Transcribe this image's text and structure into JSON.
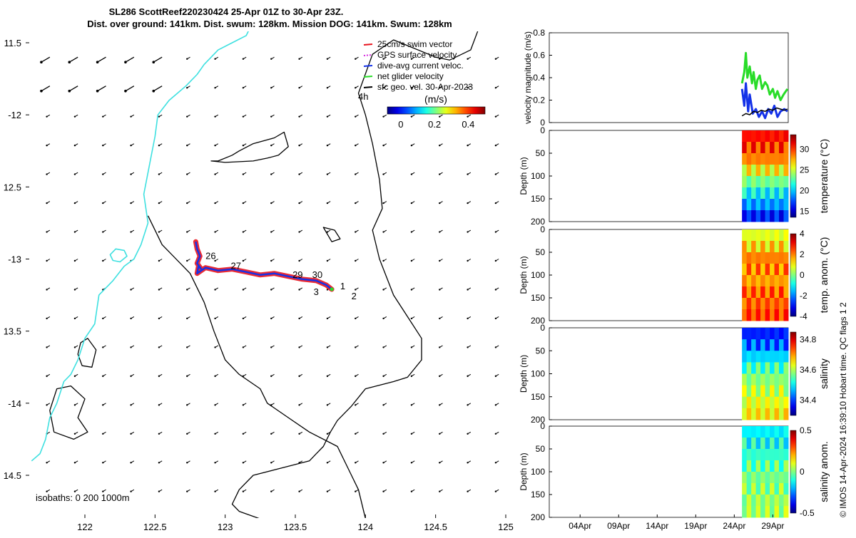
{
  "header": {
    "title_line1": "SL286 ScottReef220230424 25-Apr 01Z to 30-Apr 23Z.",
    "title_line2": "Dist. over ground: 141km. Dist. swum: 128km. Mission DOG: 141km. Swum: 128km"
  },
  "credit": "© IMOS 14-Apr-2024 16:39:10 Hobart time. QC flags 1  2",
  "chart_data": [
    {
      "type": "scatter",
      "title": "Glider track map",
      "xlim": [
        121.6,
        125.05
      ],
      "ylim": [
        -14.8,
        -11.4
      ],
      "x_ticks": [
        122,
        122.5,
        123,
        123.5,
        124,
        124.5,
        125
      ],
      "x_tick_labels": [
        "122",
        "122.5",
        "123",
        "123.5",
        "124",
        "124.5",
        "125"
      ],
      "y_ticks": [
        -11.5,
        -12,
        -12.5,
        -13,
        -13.5,
        -14,
        -14.5
      ],
      "y_tick_labels": [
        "11.5",
        "-12",
        "12.5",
        "-13",
        "13.5",
        "-14",
        "14.5"
      ],
      "legend": [
        {
          "label": "25cm/s swim vector",
          "color": "#e8141e"
        },
        {
          "label": "GPS surface velocity",
          "color": "#d62adf"
        },
        {
          "label": "dive-avg current veloc.",
          "color": "#1432e8"
        },
        {
          "label": "net glider velocity",
          "color": "#28dc28"
        },
        {
          "label": "sfc geo. vel. 30-Apr-2023",
          "color": "#000000"
        }
      ],
      "legend_extra": "4h",
      "colorbar": {
        "label": "(m/s)",
        "ticks": [
          "0",
          "0.2",
          "0.4"
        ],
        "range": [
          -0.08,
          0.5
        ]
      },
      "isobaths_label": "isobaths: 0   200  1000m",
      "day_labels": [
        {
          "text": "26",
          "lon": 122.86,
          "lat": -13.0
        },
        {
          "text": "27",
          "lon": 123.04,
          "lat": -13.07
        },
        {
          "text": "29",
          "lon": 123.48,
          "lat": -13.13
        },
        {
          "text": "30",
          "lon": 123.62,
          "lat": -13.13
        },
        {
          "text": "1",
          "lon": 123.82,
          "lat": -13.21
        },
        {
          "text": "2",
          "lon": 123.9,
          "lat": -13.28
        },
        {
          "text": "3",
          "lon": 123.63,
          "lat": -13.25
        }
      ],
      "track": {
        "lon": [
          122.79,
          122.8,
          122.82,
          122.8,
          122.83,
          122.81,
          122.8,
          122.86,
          122.95,
          123.05,
          123.15,
          123.25,
          123.35,
          123.45,
          123.55,
          123.65,
          123.72,
          123.76
        ],
        "lat": [
          -12.88,
          -12.93,
          -12.98,
          -13.03,
          -13.07,
          -13.05,
          -13.1,
          -13.06,
          -13.08,
          -13.07,
          -13.09,
          -13.11,
          -13.1,
          -13.12,
          -13.14,
          -13.15,
          -13.18,
          -13.21
        ]
      },
      "coastline_cyan": {
        "lon": [
          123.2,
          123.15,
          123.05,
          122.95,
          122.85,
          122.8,
          122.72,
          122.6,
          122.52,
          122.5,
          122.47,
          122.42,
          122.45,
          122.4,
          122.35,
          122.28,
          122.2,
          122.1,
          122.07,
          122.0,
          121.95,
          121.9,
          121.85,
          121.8,
          121.75,
          121.72,
          121.68,
          121.62
        ],
        "lat": [
          -11.35,
          -11.45,
          -11.5,
          -11.55,
          -11.65,
          -11.72,
          -11.8,
          -11.9,
          -12.0,
          -12.15,
          -12.3,
          -12.55,
          -12.75,
          -12.9,
          -13.0,
          -13.05,
          -13.15,
          -13.25,
          -13.45,
          -13.55,
          -13.7,
          -13.8,
          -13.85,
          -14.0,
          -14.1,
          -14.25,
          -14.35,
          -14.4
        ]
      },
      "coastline_cyan_island": {
        "lon": [
          122.22,
          122.28,
          122.3,
          122.25,
          122.2,
          122.18,
          122.22
        ],
        "lat": [
          -12.93,
          -12.94,
          -12.98,
          -13.02,
          -13.01,
          -12.97,
          -12.93
        ]
      },
      "isobath_200": {
        "lon": [
          124.82,
          124.8,
          124.75,
          124.6,
          124.5,
          124.3,
          124.2,
          124.05,
          123.95,
          124.0,
          124.05,
          124.1,
          124.12,
          124.05,
          124.1,
          124.2,
          124.3,
          124.4,
          124.4,
          124.3,
          124.2,
          124.0,
          123.9,
          123.8,
          123.75,
          123.7,
          123.65,
          123.6,
          123.4,
          123.2,
          123.1,
          123.05,
          123.1,
          123.3,
          123.4,
          123.5,
          123.6,
          123.75,
          123.85,
          123.92,
          124.0,
          123.95,
          123.9,
          123.8,
          123.6,
          123.45,
          123.3,
          123.25,
          123.1,
          123.0,
          122.92,
          122.85,
          122.75,
          122.55,
          122.45
        ],
        "lat": [
          -11.35,
          -11.42,
          -11.55,
          -11.62,
          -11.6,
          -11.52,
          -11.48,
          -11.58,
          -11.85,
          -12.0,
          -12.2,
          -12.45,
          -12.65,
          -12.8,
          -13.0,
          -13.25,
          -13.4,
          -13.55,
          -13.7,
          -13.82,
          -13.85,
          -13.9,
          -14.02,
          -14.12,
          -14.2,
          -14.3,
          -14.35,
          -14.4,
          -14.45,
          -14.5,
          -14.6,
          -14.7,
          -14.75,
          -14.82,
          -14.9,
          -14.95,
          -15.0,
          -15.05,
          -15.02,
          -14.9,
          -14.8,
          -14.6,
          -14.5,
          -14.3,
          -14.2,
          -14.1,
          -14.0,
          -13.9,
          -13.8,
          -13.7,
          -13.5,
          -13.3,
          -13.1,
          -12.9,
          -12.7
        ]
      },
      "isobath_shelf_north": {
        "lon": [
          122.95,
          123.05,
          123.1,
          123.2,
          123.35,
          123.42,
          123.45,
          123.38,
          123.3,
          123.2,
          123.0,
          122.9
        ],
        "lat": [
          -12.32,
          -12.28,
          -12.25,
          -12.2,
          -12.16,
          -12.12,
          -12.22,
          -12.28,
          -12.3,
          -12.32,
          -12.33,
          -12.32
        ]
      },
      "isobath_small_1": {
        "lon": [
          121.97,
          122.02,
          122.08,
          122.05,
          121.98,
          121.95,
          121.97
        ],
        "lat": [
          -13.58,
          -13.55,
          -13.63,
          -13.75,
          -13.74,
          -13.66,
          -13.58
        ]
      },
      "isobath_small_2": {
        "lon": [
          121.8,
          121.9,
          122.0,
          121.95,
          122.02,
          121.92,
          121.78,
          121.75,
          121.8
        ],
        "lat": [
          -13.9,
          -13.88,
          -13.97,
          -14.1,
          -14.2,
          -14.25,
          -14.2,
          -14.05,
          -13.9
        ]
      },
      "isobath_small_3": {
        "lon": [
          123.7,
          123.78,
          123.82,
          123.76,
          123.7
        ],
        "lat": [
          -12.78,
          -12.8,
          -12.86,
          -12.88,
          -12.78
        ]
      },
      "vector_field": {
        "lon": [
          121.75,
          121.95,
          122.15,
          122.35,
          122.55,
          122.75,
          122.95,
          123.15,
          123.35,
          123.55,
          123.75,
          123.95,
          124.15,
          124.35,
          124.55,
          124.75,
          124.95
        ],
        "lat": [
          -11.6,
          -11.8,
          -12.0,
          -12.2,
          -12.4,
          -12.6,
          -12.8,
          -13.0,
          -13.2,
          -13.4,
          -13.6,
          -13.8,
          -14.0,
          -14.2,
          -14.4,
          -14.6
        ],
        "note": "arrow field; north-west region shows strong south-westward flow (~0.3 m/s), elsewhere weak south-westward flow"
      }
    },
    {
      "type": "line",
      "ylabel": "velocity magnitude (m/s)",
      "ylim": [
        0,
        0.8
      ],
      "yticks": [
        "0",
        "0.2",
        "0.4",
        "0.6",
        "0.8"
      ],
      "series": [
        {
          "name": "net glider velocity",
          "color": "#28dc28",
          "x_days": [
            25.0,
            25.3,
            25.5,
            25.7,
            26.0,
            26.3,
            26.5,
            26.8,
            27.0,
            27.3,
            27.6,
            28.0,
            28.3,
            28.6,
            29.0,
            29.3,
            29.6,
            30.0,
            30.4,
            30.9
          ],
          "values": [
            0.35,
            0.45,
            0.62,
            0.4,
            0.5,
            0.35,
            0.45,
            0.3,
            0.38,
            0.42,
            0.3,
            0.36,
            0.33,
            0.25,
            0.3,
            0.22,
            0.28,
            0.2,
            0.25,
            0.3
          ]
        },
        {
          "name": "dive-avg current veloc.",
          "color": "#1432e8",
          "x_days": [
            25.0,
            25.3,
            25.5,
            25.8,
            26.0,
            26.4,
            26.8,
            27.2,
            27.6,
            28.0,
            28.4,
            28.8,
            29.2,
            29.6,
            30.0,
            30.5,
            30.9
          ],
          "values": [
            0.3,
            0.15,
            0.35,
            0.1,
            0.25,
            0.08,
            0.12,
            0.05,
            0.1,
            0.04,
            0.12,
            0.08,
            0.15,
            0.05,
            0.1,
            0.12,
            0.1
          ]
        },
        {
          "name": "sfc geo. vel.",
          "color": "#000000",
          "x_days": [
            25.0,
            25.5,
            26.0,
            26.5,
            27.0,
            27.5,
            28.0,
            28.5,
            29.0,
            29.5,
            30.0,
            30.5,
            30.9
          ],
          "values": [
            0.06,
            0.08,
            0.07,
            0.1,
            0.09,
            0.11,
            0.1,
            0.12,
            0.11,
            0.13,
            0.12,
            0.11,
            0.12
          ]
        }
      ]
    },
    {
      "type": "heatmap",
      "ylabel": "Depth (m)",
      "colorbar_label": "temperature (°C)",
      "ylim": [
        0,
        200
      ],
      "yticks": [
        "0",
        "50",
        "100",
        "150",
        "200"
      ],
      "colorbar_ticks": [
        "15",
        "20",
        "25",
        "30"
      ],
      "colorbar_range": [
        13.5,
        33.5
      ],
      "profile_depths_m": [
        0,
        25,
        50,
        75,
        100,
        125,
        150,
        175,
        200
      ],
      "values": [
        31.0,
        30.5,
        29.5,
        27.5,
        24.5,
        22.0,
        20.0,
        18.0,
        15.0
      ]
    },
    {
      "type": "heatmap",
      "ylabel": "Depth (m)",
      "colorbar_label": "temp. anom. (°C)",
      "ylim": [
        0,
        200
      ],
      "yticks": [
        "0",
        "50",
        "100",
        "150",
        "200"
      ],
      "colorbar_ticks": [
        "-4",
        "-2",
        "0",
        "2",
        "4"
      ],
      "colorbar_range": [
        -4,
        4
      ],
      "profile_depths_m": [
        0,
        25,
        50,
        75,
        100,
        125,
        150,
        175,
        200
      ],
      "values": [
        0.5,
        1.0,
        1.5,
        2.5,
        1.5,
        2.0,
        2.5,
        2.0,
        3.0
      ]
    },
    {
      "type": "heatmap",
      "ylabel": "Depth (m)",
      "colorbar_label": "salinity",
      "ylim": [
        0,
        200
      ],
      "yticks": [
        "0",
        "50",
        "100",
        "150",
        "200"
      ],
      "colorbar_ticks": [
        "34.4",
        "34.6",
        "34.8"
      ],
      "colorbar_range": [
        34.3,
        34.85
      ],
      "profile_depths_m": [
        0,
        25,
        50,
        75,
        100,
        125,
        150,
        175,
        200
      ],
      "values": [
        34.37,
        34.4,
        34.45,
        34.52,
        34.56,
        34.6,
        34.62,
        34.64,
        34.66
      ]
    },
    {
      "type": "heatmap",
      "ylabel": "Depth (m)",
      "colorbar_label": "salinity anom.",
      "ylim": [
        0,
        200
      ],
      "yticks": [
        "0",
        "50",
        "100",
        "150",
        "200"
      ],
      "colorbar_ticks": [
        "-0.5",
        "0",
        "0.5"
      ],
      "colorbar_range": [
        -0.5,
        0.5
      ],
      "profile_depths_m": [
        0,
        25,
        50,
        75,
        100,
        125,
        150,
        175,
        200
      ],
      "values": [
        -0.15,
        -0.12,
        -0.1,
        -0.05,
        -0.02,
        0.0,
        0.02,
        0.03,
        0.04
      ],
      "x_ticks_days": [
        4,
        9,
        14,
        19,
        24,
        29
      ],
      "x_tick_labels": [
        "04Apr",
        "09Apr",
        "14Apr",
        "19Apr",
        "24Apr",
        "29Apr"
      ],
      "xlim_days": [
        0,
        31
      ]
    }
  ]
}
